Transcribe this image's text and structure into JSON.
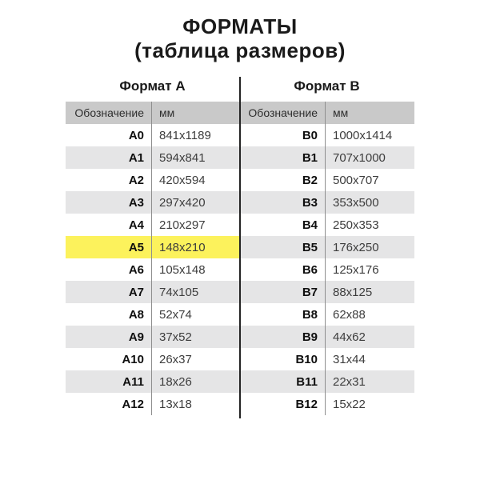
{
  "title": {
    "line1": "ФОРМАТЫ",
    "line2": "(таблица размеров)"
  },
  "colors": {
    "header_row_bg": "#c9c9c9",
    "stripe_row_bg": "#e5e5e6",
    "highlight_row_bg": "#fcf25c",
    "center_divider": "#242424",
    "column_divider": "#8f8f8f",
    "designation_text": "#0f0f0f",
    "size_text": "#3d3d3d",
    "title_text": "#1a1a1a"
  },
  "chart_data": [
    {
      "type": "table",
      "title": "Формат А",
      "columns": [
        "Обозначение",
        "мм"
      ],
      "highlighted_row": "A5",
      "rows": [
        {
          "designation": "A0",
          "mm": "841x1189",
          "highlight": false
        },
        {
          "designation": "A1",
          "mm": "594x841",
          "highlight": false
        },
        {
          "designation": "A2",
          "mm": "420x594",
          "highlight": false
        },
        {
          "designation": "A3",
          "mm": "297x420",
          "highlight": false
        },
        {
          "designation": "A4",
          "mm": "210x297",
          "highlight": false
        },
        {
          "designation": "A5",
          "mm": "148x210",
          "highlight": true
        },
        {
          "designation": "A6",
          "mm": "105x148",
          "highlight": false
        },
        {
          "designation": "A7",
          "mm": "74x105",
          "highlight": false
        },
        {
          "designation": "A8",
          "mm": "52x74",
          "highlight": false
        },
        {
          "designation": "A9",
          "mm": "37x52",
          "highlight": false
        },
        {
          "designation": "A10",
          "mm": "26x37",
          "highlight": false
        },
        {
          "designation": "A11",
          "mm": "18x26",
          "highlight": false
        },
        {
          "designation": "A12",
          "mm": "13x18",
          "highlight": false
        }
      ]
    },
    {
      "type": "table",
      "title": "Формат B",
      "columns": [
        "Обозначение",
        "мм"
      ],
      "highlighted_row": null,
      "rows": [
        {
          "designation": "B0",
          "mm": "1000x1414",
          "highlight": false
        },
        {
          "designation": "B1",
          "mm": "707x1000",
          "highlight": false
        },
        {
          "designation": "B2",
          "mm": "500x707",
          "highlight": false
        },
        {
          "designation": "B3",
          "mm": "353x500",
          "highlight": false
        },
        {
          "designation": "B4",
          "mm": "250x353",
          "highlight": false
        },
        {
          "designation": "B5",
          "mm": "176x250",
          "highlight": false
        },
        {
          "designation": "B6",
          "mm": "125x176",
          "highlight": false
        },
        {
          "designation": "B7",
          "mm": "88x125",
          "highlight": false
        },
        {
          "designation": "B8",
          "mm": "62x88",
          "highlight": false
        },
        {
          "designation": "B9",
          "mm": "44x62",
          "highlight": false
        },
        {
          "designation": "B10",
          "mm": "31x44",
          "highlight": false
        },
        {
          "designation": "B11",
          "mm": "22x31",
          "highlight": false
        },
        {
          "designation": "B12",
          "mm": "15x22",
          "highlight": false
        }
      ]
    }
  ]
}
